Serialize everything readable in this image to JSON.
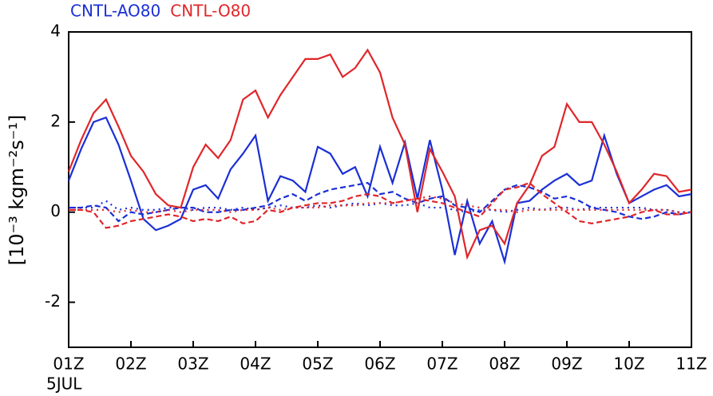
{
  "chart_data": {
    "type": "line",
    "y_label": "[10⁻³ kgm⁻²s⁻¹]",
    "x_sublabel": "5JUL",
    "x": [
      0,
      0.2,
      0.4,
      0.6,
      0.8,
      1,
      1.2,
      1.4,
      1.6,
      1.8,
      2,
      2.2,
      2.4,
      2.6,
      2.8,
      3,
      3.2,
      3.4,
      3.6,
      3.8,
      4,
      4.2,
      4.4,
      4.6,
      4.8,
      5,
      5.2,
      5.4,
      5.6,
      5.8,
      6,
      6.2,
      6.4,
      6.6,
      6.8,
      7,
      7.2,
      7.4,
      7.6,
      7.8,
      8,
      8.2,
      8.4,
      8.6,
      8.8,
      9,
      9.2,
      9.4,
      9.6,
      9.8,
      10
    ],
    "xlim": [
      0,
      10
    ],
    "xticks": [
      {
        "value": 0,
        "label": "01Z"
      },
      {
        "value": 1,
        "label": "02Z"
      },
      {
        "value": 2,
        "label": "03Z"
      },
      {
        "value": 3,
        "label": "04Z"
      },
      {
        "value": 4,
        "label": "05Z"
      },
      {
        "value": 5,
        "label": "06Z"
      },
      {
        "value": 6,
        "label": "07Z"
      },
      {
        "value": 7,
        "label": "08Z"
      },
      {
        "value": 8,
        "label": "09Z"
      },
      {
        "value": 9,
        "label": "10Z"
      },
      {
        "value": 10,
        "label": "11Z"
      }
    ],
    "ylim": [
      -3,
      4
    ],
    "yticks": [
      -2,
      0,
      2,
      4
    ],
    "series": [
      {
        "name": "CNTL-AO80",
        "color": "#1a2fd6",
        "values": [
          0.7,
          1.4,
          2.0,
          2.1,
          1.5,
          0.7,
          -0.15,
          -0.4,
          -0.3,
          -0.15,
          0.5,
          0.6,
          0.3,
          0.95,
          1.3,
          1.7,
          0.25,
          0.8,
          0.7,
          0.45,
          1.45,
          1.3,
          0.85,
          1.0,
          0.35,
          1.45,
          0.65,
          1.55,
          0.3,
          1.6,
          0.5,
          -0.95,
          0.25,
          -0.7,
          -0.2,
          -1.1,
          0.2,
          0.25,
          0.5,
          0.7,
          0.85,
          0.6,
          0.7,
          1.7,
          0.85,
          0.2,
          0.35,
          0.5,
          0.6,
          0.35,
          0.4
        ],
        "dashed": [
          0.1,
          0.1,
          0.15,
          0.1,
          -0.2,
          0,
          -0.05,
          0,
          0.05,
          0.1,
          0.1,
          0.0,
          0.0,
          0.05,
          0.05,
          0.1,
          0.15,
          0.3,
          0.4,
          0.25,
          0.4,
          0.5,
          0.55,
          0.6,
          0.65,
          0.4,
          0.45,
          0.3,
          0.2,
          0.3,
          0.35,
          0.15,
          0.1,
          0.0,
          0.25,
          0.5,
          0.6,
          0.55,
          0.45,
          0.3,
          0.35,
          0.25,
          0.1,
          0.05,
          0.0,
          -0.1,
          -0.15,
          -0.1,
          0.0,
          -0.05,
          0.0
        ],
        "dotted": [
          0.1,
          0.1,
          0.1,
          0.25,
          0.05,
          0.1,
          0.05,
          0.05,
          0.1,
          0.1,
          0.05,
          0.1,
          0.1,
          0.05,
          0.1,
          0.05,
          0.1,
          0.15,
          0.1,
          0.1,
          0.15,
          0.1,
          0.15,
          0.2,
          0.15,
          0.2,
          0.15,
          0.15,
          0.2,
          0.1,
          0.1,
          0.05,
          0.0,
          0.05,
          0.05,
          0.0,
          0.05,
          0.1,
          0.05,
          0.1,
          0.1,
          0.05,
          0.1,
          0.1,
          0.1,
          0.1,
          0.1,
          0.05,
          0.05,
          0.0,
          0.0
        ]
      },
      {
        "name": "CNTL-O80",
        "color": "#e0262a",
        "values": [
          0.9,
          1.6,
          2.2,
          2.5,
          1.9,
          1.25,
          0.9,
          0.4,
          0.15,
          0.1,
          1.0,
          1.5,
          1.2,
          1.6,
          2.5,
          2.7,
          2.1,
          2.6,
          3.0,
          3.4,
          3.4,
          3.5,
          3.0,
          3.2,
          3.6,
          3.1,
          2.1,
          1.5,
          0.0,
          1.4,
          0.9,
          0.35,
          -1.0,
          -0.4,
          -0.3,
          -0.7,
          0.2,
          0.6,
          1.25,
          1.45,
          2.4,
          2.0,
          2.0,
          1.5,
          0.9,
          0.2,
          0.5,
          0.85,
          0.8,
          0.45,
          0.5
        ],
        "dashed": [
          0.05,
          0.05,
          0.0,
          -0.35,
          -0.3,
          -0.2,
          -0.15,
          -0.1,
          -0.05,
          -0.1,
          -0.2,
          -0.15,
          -0.2,
          -0.1,
          -0.25,
          -0.2,
          0.05,
          0.0,
          0.1,
          0.15,
          0.2,
          0.2,
          0.25,
          0.35,
          0.4,
          0.35,
          0.2,
          0.25,
          0.3,
          0.25,
          0.2,
          0.1,
          0.0,
          -0.1,
          0.2,
          0.5,
          0.55,
          0.65,
          0.4,
          0.2,
          0.0,
          -0.2,
          -0.25,
          -0.2,
          -0.15,
          -0.1,
          0.0,
          0.05,
          -0.05,
          -0.05,
          0.0
        ],
        "dotted": [
          0.05,
          0.05,
          0.05,
          0.05,
          0.0,
          0.05,
          0.0,
          0.0,
          0.05,
          0.0,
          0.05,
          0.05,
          0.05,
          0.0,
          0.05,
          0.05,
          0.1,
          0.05,
          0.1,
          0.1,
          0.1,
          0.15,
          0.15,
          0.15,
          0.2,
          0.2,
          0.2,
          0.25,
          0.3,
          0.35,
          0.3,
          0.2,
          0.15,
          0.1,
          0.05,
          0.05,
          0.0,
          0.05,
          0.05,
          0.05,
          0.05,
          0.05,
          0.05,
          0.05,
          0.05,
          0.05,
          0.05,
          0.05,
          0.05,
          0.0,
          0.0
        ]
      }
    ]
  }
}
